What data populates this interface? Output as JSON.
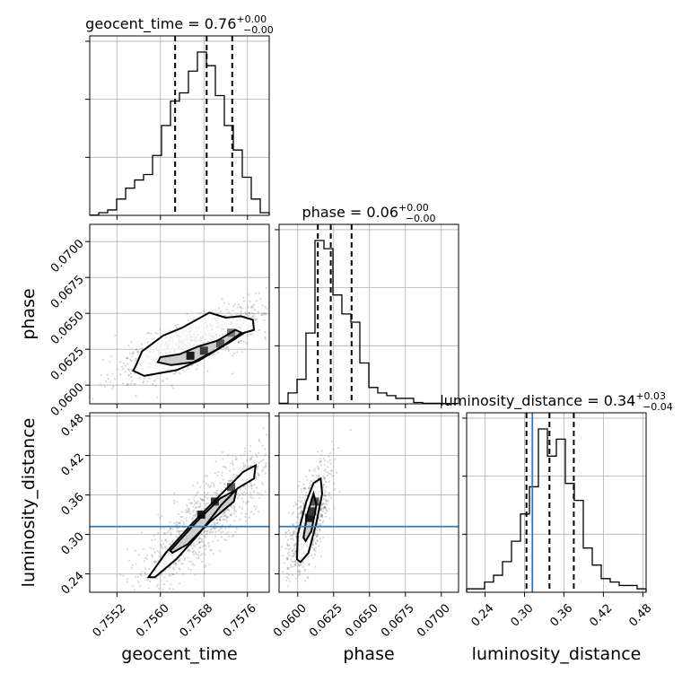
{
  "chart_data": {
    "type": "corner",
    "parameters": [
      "geocent_time",
      "phase",
      "luminosity_distance"
    ],
    "colors": {
      "samples": "#000000",
      "truth": "#3b78b8",
      "grid": "#b0b0b0"
    },
    "titles": [
      {
        "parameter": "geocent_time",
        "prefix": "geocent_time = ",
        "value": "0.76",
        "plus": "+0.00",
        "minus": "−0.00"
      },
      {
        "parameter": "phase",
        "prefix": "phase = ",
        "value": "0.06",
        "plus": "+0.00",
        "minus": "−0.00"
      },
      {
        "parameter": "luminosity_distance",
        "prefix": "luminosity_distance = ",
        "value": "0.34",
        "plus": "+0.03",
        "minus": "−0.04"
      }
    ],
    "axes": {
      "geocent_time": {
        "range": [
          0.7547,
          0.758
        ],
        "ticks": [
          0.7552,
          0.756,
          0.7568,
          0.7576
        ],
        "tick_labels": [
          "0.7552",
          "0.7560",
          "0.7568",
          "0.7576"
        ]
      },
      "phase": {
        "range": [
          0.0587,
          0.0712
        ],
        "ticks": [
          0.06,
          0.0625,
          0.065,
          0.0675,
          0.07
        ],
        "tick_labels": [
          "0.0600",
          "0.0625",
          "0.0650",
          "0.0675",
          "0.0700"
        ]
      },
      "luminosity_distance": {
        "range": [
          0.212,
          0.485
        ],
        "ticks": [
          0.24,
          0.3,
          0.36,
          0.42,
          0.48
        ],
        "tick_labels": [
          "0.24",
          "0.30",
          "0.36",
          "0.42",
          "0.48"
        ]
      }
    },
    "truth": {
      "luminosity_distance": 0.312
    },
    "quantiles": {
      "geocent_time": [
        0.75627,
        0.75685,
        0.75732
      ],
      "phase": [
        0.0614,
        0.0623,
        0.06375
      ],
      "luminosity_distance": [
        0.303,
        0.338,
        0.375
      ]
    },
    "histograms": {
      "geocent_time": {
        "edges_start": 0.7547,
        "bin_width": 0.000165,
        "counts": [
          0.1,
          1,
          2,
          6,
          10,
          13,
          15,
          22,
          33,
          42,
          45,
          53,
          60,
          55,
          44,
          33,
          24,
          14,
          6,
          1
        ]
      },
      "phase": {
        "edges_start": 0.0587,
        "bin_width": 0.000625,
        "counts": [
          0.2,
          4,
          9,
          26,
          60,
          57,
          40,
          33,
          30,
          15,
          6,
          4,
          3,
          2,
          2,
          0.5,
          0.2,
          0.2,
          0.1,
          0.1
        ]
      },
      "luminosity_distance": {
        "edges_start": 0.212,
        "bin_width": 0.01365,
        "counts": [
          1,
          1,
          3,
          5,
          9,
          15,
          23,
          31,
          48,
          40,
          45,
          32,
          27,
          13,
          8,
          4,
          3,
          2,
          2,
          1
        ]
      }
    },
    "contours_2d": {
      "phase_vs_geocent_time": {
        "outer": [
          [
            0.75556,
            0.06145
          ],
          [
            0.75566,
            0.06235
          ],
          [
            0.75605,
            0.06345
          ],
          [
            0.7564,
            0.064
          ],
          [
            0.7569,
            0.06505
          ],
          [
            0.7572,
            0.0647
          ],
          [
            0.75748,
            0.0648
          ],
          [
            0.7577,
            0.06455
          ],
          [
            0.75772,
            0.06385
          ],
          [
            0.75745,
            0.06355
          ],
          [
            0.7571,
            0.0626
          ],
          [
            0.7567,
            0.0617
          ],
          [
            0.7563,
            0.06105
          ],
          [
            0.7557,
            0.06065
          ],
          [
            0.7555,
            0.061
          ]
        ],
        "inner": [
          [
            0.756,
            0.06195
          ],
          [
            0.75635,
            0.06215
          ],
          [
            0.7567,
            0.0627
          ],
          [
            0.75705,
            0.0631
          ],
          [
            0.75738,
            0.06385
          ],
          [
            0.75752,
            0.0636
          ],
          [
            0.75728,
            0.063
          ],
          [
            0.75695,
            0.0623
          ],
          [
            0.7566,
            0.0616
          ],
          [
            0.7562,
            0.0614
          ],
          [
            0.75595,
            0.0616
          ]
        ]
      },
      "luminosity_distance_vs_geocent_time": {
        "outer": [
          [
            0.75578,
            0.235
          ],
          [
            0.7561,
            0.272
          ],
          [
            0.7566,
            0.318
          ],
          [
            0.7572,
            0.368
          ],
          [
            0.75752,
            0.395
          ],
          [
            0.75775,
            0.405
          ],
          [
            0.75772,
            0.385
          ],
          [
            0.75742,
            0.37
          ],
          [
            0.75712,
            0.345
          ],
          [
            0.7567,
            0.3
          ],
          [
            0.7563,
            0.263
          ],
          [
            0.7559,
            0.235
          ]
        ],
        "inner": [
          [
            0.75618,
            0.275
          ],
          [
            0.75665,
            0.318
          ],
          [
            0.7571,
            0.355
          ],
          [
            0.7574,
            0.368
          ],
          [
            0.75735,
            0.35
          ],
          [
            0.75692,
            0.32
          ],
          [
            0.7565,
            0.285
          ],
          [
            0.75622,
            0.272
          ]
        ]
      },
      "luminosity_distance_vs_phase": {
        "outer": [
          [
            0.05995,
            0.262
          ],
          [
            0.06,
            0.3
          ],
          [
            0.0606,
            0.35
          ],
          [
            0.0611,
            0.378
          ],
          [
            0.0616,
            0.385
          ],
          [
            0.0617,
            0.362
          ],
          [
            0.0613,
            0.318
          ],
          [
            0.06075,
            0.272
          ],
          [
            0.0602,
            0.258
          ]
        ],
        "inner": [
          [
            0.0604,
            0.295
          ],
          [
            0.06065,
            0.33
          ],
          [
            0.0611,
            0.362
          ],
          [
            0.0613,
            0.345
          ],
          [
            0.06095,
            0.305
          ],
          [
            0.06055,
            0.29
          ]
        ]
      }
    },
    "density_peaks": {
      "phase_vs_geocent_time": [
        [
          0.75655,
          0.06205
        ],
        [
          0.7568,
          0.0624
        ],
        [
          0.7571,
          0.0629
        ],
        [
          0.7573,
          0.06365
        ]
      ],
      "luminosity_distance_vs_geocent_time": [
        [
          0.75675,
          0.33
        ],
        [
          0.757,
          0.35
        ],
        [
          0.7573,
          0.372
        ]
      ],
      "luminosity_distance_vs_phase": [
        [
          0.0608,
          0.325
        ],
        [
          0.061,
          0.335
        ],
        [
          0.0612,
          0.35
        ]
      ]
    },
    "xlabel_text": [
      "geocent_time",
      "phase",
      "luminosity_distance"
    ],
    "ylabel_text": [
      "phase",
      "luminosity_distance"
    ]
  }
}
